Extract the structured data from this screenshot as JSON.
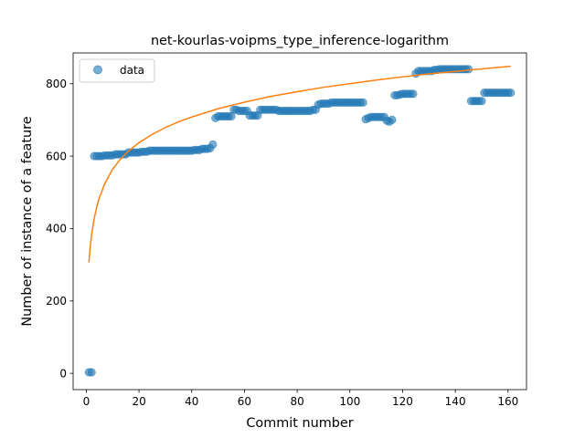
{
  "chart_data": {
    "type": "scatter",
    "title": "net-kourlas-voipms_type_inference-logarithm",
    "xlabel": "Commit number",
    "ylabel": "Number of instance of a feature",
    "xlim": [
      -5,
      167
    ],
    "ylim": [
      -45,
      885
    ],
    "xticks": [
      0,
      20,
      40,
      60,
      80,
      100,
      120,
      140,
      160
    ],
    "yticks": [
      0,
      200,
      400,
      600,
      800
    ],
    "legend": {
      "position": "top-left",
      "entries": [
        "data"
      ]
    },
    "colors": {
      "data": "#1f77b4",
      "fit": "#ff7f0e"
    },
    "series": [
      {
        "name": "data",
        "kind": "scatter",
        "points": [
          [
            1,
            3
          ],
          [
            2,
            3
          ],
          [
            3,
            600
          ],
          [
            4,
            600
          ],
          [
            5,
            600
          ],
          [
            6,
            600
          ],
          [
            7,
            602
          ],
          [
            8,
            602
          ],
          [
            9,
            602
          ],
          [
            10,
            602
          ],
          [
            11,
            605
          ],
          [
            12,
            605
          ],
          [
            13,
            605
          ],
          [
            14,
            605
          ],
          [
            15,
            605
          ],
          [
            16,
            610
          ],
          [
            17,
            610
          ],
          [
            18,
            610
          ],
          [
            19,
            610
          ],
          [
            20,
            610
          ],
          [
            21,
            612
          ],
          [
            22,
            612
          ],
          [
            23,
            612
          ],
          [
            24,
            615
          ],
          [
            25,
            615
          ],
          [
            26,
            615
          ],
          [
            27,
            615
          ],
          [
            28,
            615
          ],
          [
            29,
            615
          ],
          [
            30,
            615
          ],
          [
            31,
            615
          ],
          [
            32,
            615
          ],
          [
            33,
            615
          ],
          [
            34,
            615
          ],
          [
            35,
            615
          ],
          [
            36,
            615
          ],
          [
            37,
            615
          ],
          [
            38,
            615
          ],
          [
            39,
            615
          ],
          [
            40,
            615
          ],
          [
            41,
            617
          ],
          [
            42,
            617
          ],
          [
            43,
            617
          ],
          [
            44,
            620
          ],
          [
            45,
            620
          ],
          [
            46,
            620
          ],
          [
            47,
            622
          ],
          [
            48,
            632
          ],
          [
            49,
            705
          ],
          [
            50,
            710
          ],
          [
            51,
            710
          ],
          [
            52,
            710
          ],
          [
            53,
            710
          ],
          [
            54,
            710
          ],
          [
            55,
            710
          ],
          [
            56,
            728
          ],
          [
            57,
            728
          ],
          [
            58,
            725
          ],
          [
            59,
            725
          ],
          [
            60,
            725
          ],
          [
            61,
            725
          ],
          [
            62,
            712
          ],
          [
            63,
            712
          ],
          [
            64,
            712
          ],
          [
            65,
            712
          ],
          [
            66,
            728
          ],
          [
            67,
            728
          ],
          [
            68,
            728
          ],
          [
            69,
            728
          ],
          [
            70,
            728
          ],
          [
            71,
            728
          ],
          [
            72,
            728
          ],
          [
            73,
            725
          ],
          [
            74,
            725
          ],
          [
            75,
            725
          ],
          [
            76,
            725
          ],
          [
            77,
            725
          ],
          [
            78,
            725
          ],
          [
            79,
            725
          ],
          [
            80,
            725
          ],
          [
            81,
            725
          ],
          [
            82,
            725
          ],
          [
            83,
            725
          ],
          [
            84,
            725
          ],
          [
            85,
            725
          ],
          [
            86,
            728
          ],
          [
            87,
            728
          ],
          [
            88,
            742
          ],
          [
            89,
            745
          ],
          [
            90,
            745
          ],
          [
            91,
            745
          ],
          [
            92,
            745
          ],
          [
            93,
            748
          ],
          [
            94,
            748
          ],
          [
            95,
            748
          ],
          [
            96,
            748
          ],
          [
            97,
            748
          ],
          [
            98,
            748
          ],
          [
            99,
            748
          ],
          [
            100,
            748
          ],
          [
            101,
            748
          ],
          [
            102,
            748
          ],
          [
            103,
            748
          ],
          [
            104,
            748
          ],
          [
            105,
            748
          ],
          [
            106,
            702
          ],
          [
            107,
            705
          ],
          [
            108,
            708
          ],
          [
            109,
            708
          ],
          [
            110,
            708
          ],
          [
            111,
            708
          ],
          [
            112,
            708
          ],
          [
            113,
            708
          ],
          [
            114,
            698
          ],
          [
            115,
            695
          ],
          [
            116,
            700
          ],
          [
            117,
            768
          ],
          [
            118,
            768
          ],
          [
            119,
            770
          ],
          [
            120,
            772
          ],
          [
            121,
            772
          ],
          [
            122,
            772
          ],
          [
            123,
            772
          ],
          [
            124,
            772
          ],
          [
            125,
            828
          ],
          [
            126,
            835
          ],
          [
            127,
            835
          ],
          [
            128,
            835
          ],
          [
            129,
            835
          ],
          [
            130,
            835
          ],
          [
            131,
            835
          ],
          [
            132,
            838
          ],
          [
            133,
            838
          ],
          [
            134,
            840
          ],
          [
            135,
            840
          ],
          [
            136,
            840
          ],
          [
            137,
            840
          ],
          [
            138,
            840
          ],
          [
            139,
            840
          ],
          [
            140,
            840
          ],
          [
            141,
            840
          ],
          [
            142,
            840
          ],
          [
            143,
            840
          ],
          [
            144,
            840
          ],
          [
            145,
            840
          ],
          [
            146,
            752
          ],
          [
            147,
            752
          ],
          [
            148,
            752
          ],
          [
            149,
            752
          ],
          [
            150,
            752
          ],
          [
            151,
            775
          ],
          [
            152,
            775
          ],
          [
            153,
            775
          ],
          [
            154,
            775
          ],
          [
            155,
            775
          ],
          [
            156,
            775
          ],
          [
            157,
            775
          ],
          [
            158,
            775
          ],
          [
            159,
            775
          ],
          [
            160,
            775
          ],
          [
            161,
            775
          ]
        ]
      },
      {
        "name": "",
        "kind": "line",
        "points": [
          [
            1,
            306
          ],
          [
            1.5,
            351
          ],
          [
            2,
            383
          ],
          [
            3,
            428
          ],
          [
            4,
            461
          ],
          [
            5,
            486
          ],
          [
            7,
            524
          ],
          [
            10,
            564
          ],
          [
            13,
            592
          ],
          [
            16,
            614
          ],
          [
            20,
            637
          ],
          [
            25,
            660
          ],
          [
            30,
            679
          ],
          [
            35,
            695
          ],
          [
            40,
            708
          ],
          [
            50,
            731
          ],
          [
            60,
            749
          ],
          [
            70,
            765
          ],
          [
            80,
            778
          ],
          [
            90,
            790
          ],
          [
            100,
            800
          ],
          [
            110,
            810
          ],
          [
            120,
            819
          ],
          [
            130,
            827
          ],
          [
            140,
            834
          ],
          [
            150,
            841
          ],
          [
            161,
            848
          ]
        ]
      }
    ]
  }
}
